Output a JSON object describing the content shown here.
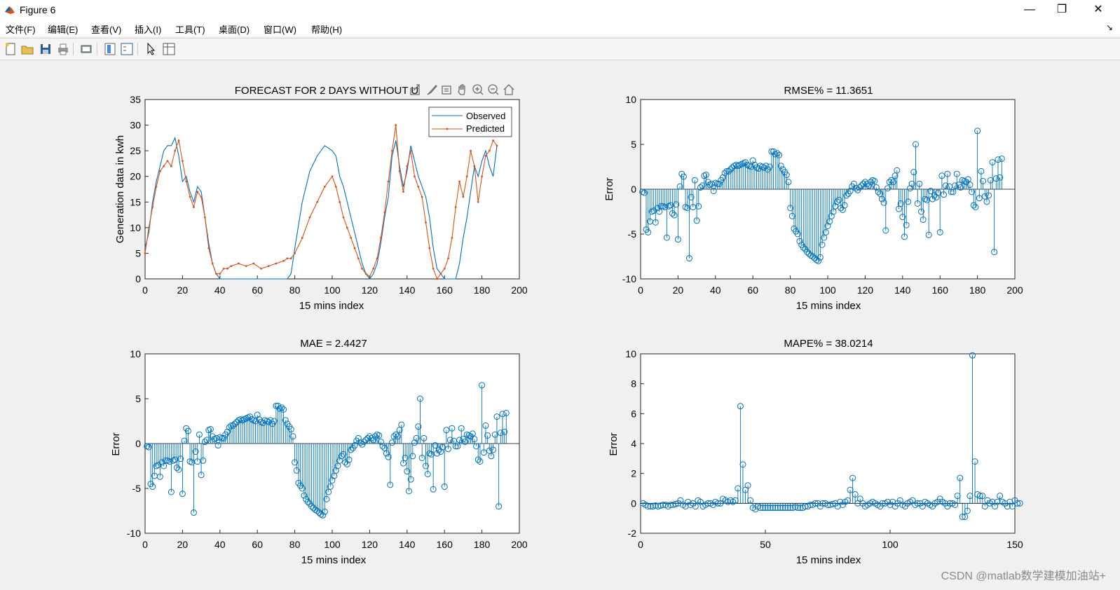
{
  "window": {
    "title": "Figure 6",
    "icons": [
      "matlab-logo-icon",
      "minimize-icon",
      "restore-icon",
      "close-icon"
    ]
  },
  "menu": [
    "文件(F)",
    "编辑(E)",
    "查看(V)",
    "插入(I)",
    "工具(T)",
    "桌面(D)",
    "窗口(W)",
    "帮助(H)"
  ],
  "toolbar": [
    "new-figure-icon",
    "open-file-icon",
    "save-icon",
    "print-icon",
    "print-preview-icon",
    "colorbar-icon",
    "legend-icon",
    "select-arrow-icon",
    "property-inspector-icon"
  ],
  "axes_toolbar": [
    "export-icon",
    "brush-icon",
    "datatips-icon",
    "pan-icon",
    "zoom-in-icon",
    "zoom-out-icon",
    "home-icon"
  ],
  "watermark": "CSDN @matlab数学建模加油站+",
  "colors": {
    "observed": "#0072bd",
    "predicted": "#d95319",
    "stem": "#0072bd"
  },
  "chart_data": [
    {
      "type": "line",
      "title": "FORECAST FOR 2 DAYS WITHOUT U",
      "xlabel": "15 mins index",
      "ylabel": "Generation data in kwh",
      "xlim": [
        0,
        200
      ],
      "ylim": [
        0,
        35
      ],
      "xticks": [
        "0",
        "20",
        "40",
        "60",
        "80",
        "100",
        "120",
        "140",
        "160",
        "180",
        "200"
      ],
      "yticks": [
        "0",
        "5",
        "10",
        "15",
        "20",
        "25",
        "30",
        "35"
      ],
      "legend": [
        "Observed",
        "Predicted"
      ],
      "legend_position": "top-right",
      "series": [
        {
          "name": "Observed",
          "x": [
            0,
            2,
            4,
            6,
            8,
            10,
            12,
            14,
            16,
            18,
            20,
            22,
            24,
            26,
            28,
            30,
            32,
            34,
            36,
            38,
            40,
            42,
            60,
            76,
            78,
            80,
            84,
            88,
            92,
            96,
            100,
            102,
            104,
            106,
            108,
            110,
            112,
            114,
            116,
            118,
            120,
            122,
            124,
            126,
            128,
            130,
            132,
            134,
            136,
            138,
            140,
            142,
            144,
            146,
            148,
            150,
            152,
            154,
            156,
            158,
            160,
            162,
            164,
            166,
            168,
            170,
            172,
            174,
            176,
            178,
            180,
            182,
            184,
            186,
            188
          ],
          "y": [
            6,
            9,
            15,
            19,
            22,
            25,
            26,
            26,
            27.5,
            24,
            19,
            20,
            17,
            15,
            18,
            17,
            12,
            7,
            3,
            1,
            0,
            0,
            0,
            0,
            1,
            6,
            15,
            21,
            24,
            26,
            25,
            24,
            20,
            18,
            15,
            12,
            9,
            6,
            3,
            1,
            0,
            1,
            3,
            7,
            12,
            16,
            24,
            27,
            22,
            18,
            21,
            26,
            23,
            20,
            18,
            16,
            12,
            6,
            2,
            1,
            0,
            0,
            0,
            0,
            3,
            8,
            12,
            17,
            22,
            20,
            23,
            25,
            22,
            20,
            26
          ]
        },
        {
          "name": "Predicted",
          "x": [
            0,
            2,
            4,
            6,
            8,
            10,
            12,
            14,
            16,
            18,
            20,
            22,
            24,
            26,
            28,
            30,
            32,
            34,
            36,
            38,
            40,
            42,
            44,
            46,
            50,
            54,
            58,
            62,
            66,
            70,
            74,
            76,
            78,
            80,
            84,
            88,
            92,
            96,
            100,
            102,
            104,
            106,
            108,
            110,
            112,
            114,
            116,
            118,
            120,
            122,
            124,
            126,
            128,
            130,
            132,
            134,
            136,
            138,
            140,
            142,
            144,
            146,
            148,
            150,
            152,
            154,
            156,
            158,
            160,
            162,
            164,
            166,
            168,
            170,
            172,
            174,
            176,
            178,
            180,
            182,
            184,
            186,
            188
          ],
          "y": [
            5,
            10,
            14,
            18,
            21,
            22,
            23,
            22,
            25,
            27,
            23,
            19,
            16,
            14,
            17,
            16,
            12,
            6,
            3,
            1,
            1,
            2,
            2,
            2.5,
            3,
            2.5,
            3,
            2,
            2.5,
            3,
            3.5,
            4,
            4,
            5,
            8,
            12,
            15,
            18,
            20,
            18,
            15,
            12,
            10,
            8,
            6,
            4,
            2,
            1,
            0.5,
            2,
            4,
            8,
            13,
            19,
            25,
            30,
            21,
            17,
            22,
            25,
            20,
            18,
            16,
            11,
            6,
            2,
            0,
            1,
            2,
            4,
            8,
            14,
            19,
            16,
            20,
            25,
            22,
            15,
            20,
            24,
            25,
            27,
            26
          ]
        }
      ]
    },
    {
      "type": "stem",
      "title": "RMSE% = 11.3651",
      "xlabel": "15 mins index",
      "ylabel": "Error",
      "xlim": [
        0,
        200
      ],
      "ylim": [
        -10,
        10
      ],
      "xticks": [
        "0",
        "20",
        "40",
        "60",
        "80",
        "100",
        "120",
        "140",
        "160",
        "180",
        "200"
      ],
      "yticks": [
        "-10",
        "-5",
        "0",
        "5",
        "10"
      ],
      "x_start": 1,
      "x_step": 1,
      "values": [
        -0.3,
        -0.4,
        -4.5,
        -4.8,
        -3.6,
        -2.5,
        -2.4,
        -3.7,
        -2.1,
        -2.5,
        -1.9,
        -1.9,
        -2.0,
        -5.4,
        -1.9,
        -1.8,
        -2.7,
        -2.9,
        -1.7,
        -5.6,
        0.3,
        1.7,
        1.4,
        -2.0,
        -2.1,
        -7.7,
        -0.9,
        -2.0,
        1.0,
        -3.5,
        -1.9,
        0.2,
        0.4,
        1.5,
        1.6,
        0.8,
        0.5,
        0.6,
        -0.2,
        0.7,
        0.6,
        0.6,
        1.0,
        1.3,
        1.8,
        2.0,
        2.0,
        2.2,
        2.4,
        2.6,
        2.7,
        2.6,
        2.7,
        2.8,
        2.9,
        3.0,
        2.7,
        2.6,
        2.5,
        3.2,
        2.7,
        2.4,
        2.3,
        2.6,
        2.5,
        2.4,
        2.6,
        2.2,
        2.5,
        4.2,
        4.2,
        3.9,
        4.0,
        3.8,
        2.6,
        2.2,
        1.9,
        1.6,
        0.8,
        -2.1,
        -3.0,
        -4.4,
        -4.7,
        -5.0,
        -5.8,
        -6.2,
        -6.5,
        -6.7,
        -7.0,
        -7.2,
        -7.4,
        -7.5,
        -7.7,
        -7.9,
        -8.0,
        -7.6,
        -6.2,
        -5.4,
        -4.8,
        -4.1,
        -3.6,
        -3.0,
        -2.5,
        -1.9,
        -1.4,
        -1.2,
        -2.1,
        -2.3,
        -1.8,
        -0.7,
        -0.5,
        -0.2,
        0.3,
        0.6,
        0.1,
        -0.1,
        0.2,
        0.4,
        0.6,
        0.8,
        0.6,
        0.4,
        0.8,
        1.0,
        0.9,
        0.2,
        -0.3,
        -0.5,
        -1.1,
        -1.5,
        -4.6,
        0.1,
        0.8,
        1.0,
        0.8,
        1.5,
        2.1,
        -2.2,
        -1.6,
        -3.1,
        -5.3,
        -4.0,
        -1.4,
        0.1,
        0.6,
        1.9,
        5.0,
        -1.6,
        0.6,
        -2.5,
        -3.4,
        -1.1,
        -1.2,
        -5.1,
        -0.2,
        -1.1,
        -0.7,
        -0.9,
        -0.4,
        -4.8,
        1.5,
        -0.6,
        0.4,
        1.7,
        0.3,
        -0.3,
        -0.3,
        0.4,
        1.7,
        0.5,
        0.2,
        1.0,
        0.9,
        0.8,
        1.1,
        0.5,
        -0.3,
        -1.8,
        -2.0,
        6.5,
        -1.0,
        2.0,
        0.9,
        -0.8,
        -1.4,
        -0.7,
        1.0,
        3.0,
        -7.0,
        1.2,
        3.3,
        1.3,
        3.4
      ],
      "marker_x": [
        1,
        2,
        3,
        4,
        5,
        6,
        7,
        8,
        9,
        10,
        11,
        12,
        13,
        14,
        15,
        16,
        17,
        18,
        19,
        20,
        21,
        22,
        23,
        24,
        25,
        26,
        27,
        28,
        29,
        30,
        31,
        32,
        33,
        34,
        35,
        36,
        37,
        38,
        39,
        40
      ]
    },
    {
      "type": "stem",
      "title": "MAE = 2.4427",
      "xlabel": "15 mins index",
      "ylabel": "Error",
      "xlim": [
        0,
        200
      ],
      "ylim": [
        -10,
        10
      ],
      "xticks": [
        "0",
        "20",
        "40",
        "60",
        "80",
        "100",
        "120",
        "140",
        "160",
        "180",
        "200"
      ],
      "yticks": [
        "-10",
        "-5",
        "0",
        "5",
        "10"
      ],
      "same_values_as_chart": 1
    },
    {
      "type": "stem",
      "title": "MAPE% = 38.0214",
      "xlabel": "15 mins index",
      "ylabel": "Error",
      "xlim": [
        0,
        150
      ],
      "ylim": [
        -2,
        10
      ],
      "xticks": [
        "0",
        "50",
        "100",
        "150"
      ],
      "yticks": [
        "-2",
        "0",
        "2",
        "4",
        "6",
        "8",
        "10"
      ],
      "values": [
        0,
        -0.1,
        -0.2,
        -0.2,
        -0.2,
        -0.15,
        -0.2,
        -0.15,
        -0.1,
        -0.1,
        -0.2,
        -0.1,
        -0.1,
        -0.05,
        0,
        0.2,
        -0.1,
        -0.2,
        0.1,
        -0.1,
        0,
        -0.2,
        0.2,
        0.1,
        -0.2,
        -0.1,
        0,
        0,
        -0.1,
        0.1,
        0,
        0,
        0.3,
        0.2,
        0.1,
        0.2,
        0.1,
        0.2,
        1.0,
        6.5,
        2.6,
        0.9,
        1.2,
        0.2,
        -0.3,
        -0.4,
        -0.2,
        -0.3,
        -0.3,
        -0.3,
        -0.3,
        -0.3,
        -0.3,
        -0.3,
        -0.3,
        -0.3,
        -0.3,
        -0.3,
        -0.3,
        -0.3,
        -0.3,
        -0.25,
        -0.3,
        -0.3,
        -0.3,
        -0.2,
        -0.2,
        -0.1,
        -0.1,
        0,
        0,
        -0.2,
        0,
        0,
        -0.1,
        -0.1,
        -0.05,
        0,
        -0.2,
        0.1,
        -0.1,
        0.1,
        0.2,
        0.9,
        1.7,
        0.6,
        0,
        0.3,
        0,
        -0.2,
        -0.1,
        0,
        0.1,
        0,
        -0.1,
        -0.2,
        0,
        0,
        0.1,
        -0.1,
        0.1,
        -0.2,
        0,
        0.2,
        -0.1,
        -0.2,
        0,
        0.1,
        0.2,
        -0.1,
        0,
        0,
        -0.2,
        0.1,
        0,
        -0.1,
        -0.2,
        0,
        0.1,
        0.3,
        0.1,
        0,
        -0.2,
        0,
        0,
        -0.1,
        0.5,
        1.7,
        -0.9,
        -0.9,
        -0.5,
        0.5,
        9.9,
        2.8,
        0.6,
        0.5,
        0.5,
        -0.2,
        0.2,
        0,
        0.1,
        -0.2,
        0.1,
        0.5,
        0.1,
        0,
        -0.2,
        0.1,
        -0.2,
        0.2,
        0,
        0
      ]
    }
  ]
}
